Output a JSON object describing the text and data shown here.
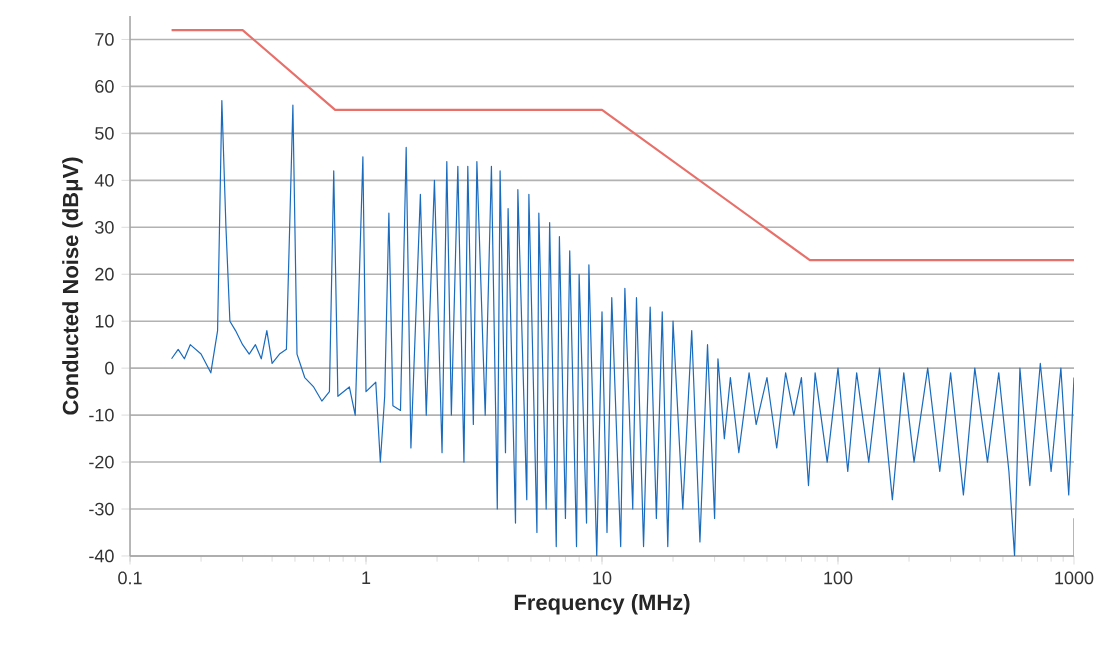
{
  "chart_data": {
    "type": "line",
    "xlabel": "Frequency (MHz)",
    "ylabel": "Conducted Noise (dBμV)",
    "log": "x",
    "grid": "y",
    "xlim": [
      0.1,
      1000
    ],
    "xticks": [
      0.1,
      1,
      10,
      100,
      1000
    ],
    "ylim": [
      -40,
      75
    ],
    "yticks": [
      -40,
      -30,
      -20,
      -10,
      0,
      10,
      20,
      30,
      40,
      50,
      60,
      70
    ],
    "series": [
      {
        "color": "#1a6bbd",
        "x": [
          0.15,
          0.16,
          0.17,
          0.18,
          0.2,
          0.22,
          0.235,
          0.245,
          0.255,
          0.265,
          0.28,
          0.3,
          0.32,
          0.34,
          0.36,
          0.38,
          0.4,
          0.43,
          0.46,
          0.49,
          0.51,
          0.55,
          0.6,
          0.65,
          0.7,
          0.73,
          0.76,
          0.85,
          0.9,
          0.97,
          1.0,
          1.1,
          1.15,
          1.2,
          1.25,
          1.3,
          1.4,
          1.48,
          1.55,
          1.7,
          1.8,
          1.95,
          2.1,
          2.2,
          2.3,
          2.45,
          2.6,
          2.7,
          2.85,
          2.95,
          3.2,
          3.4,
          3.6,
          3.7,
          3.9,
          4.0,
          4.3,
          4.4,
          4.8,
          4.9,
          5.3,
          5.4,
          5.8,
          6.0,
          6.4,
          6.6,
          7.0,
          7.3,
          7.8,
          8.0,
          8.6,
          8.8,
          9.5,
          10,
          10.5,
          11,
          12,
          12.5,
          13.5,
          14,
          15,
          16,
          17,
          18,
          19,
          20,
          22,
          24,
          26,
          28,
          30,
          31,
          33,
          35,
          38,
          42,
          45,
          50,
          55,
          60,
          65,
          70,
          75,
          80,
          90,
          100,
          110,
          120,
          135,
          150,
          170,
          190,
          210,
          240,
          270,
          300,
          340,
          380,
          430,
          480,
          530,
          560,
          590,
          650,
          720,
          800,
          880,
          950,
          1000
        ],
        "values": [
          2,
          4,
          2,
          5,
          3,
          -1,
          8,
          57,
          30,
          10,
          8,
          5,
          3,
          5,
          2,
          8,
          1,
          3,
          4,
          56,
          3,
          -2,
          -4,
          -7,
          -5,
          42,
          -6,
          -4,
          -10,
          45,
          -5,
          -3,
          -20,
          -6,
          33,
          -8,
          -9,
          47,
          -17,
          37,
          -10,
          40,
          -18,
          44,
          -10,
          43,
          -20,
          43,
          -12,
          44,
          -10,
          43,
          -30,
          42,
          -18,
          34,
          -33,
          38,
          -28,
          37,
          -35,
          33,
          -30,
          31,
          -38,
          28,
          -32,
          25,
          -38,
          20,
          -33,
          22,
          -40,
          12,
          -35,
          15,
          -38,
          17,
          -30,
          15,
          -38,
          13,
          -32,
          12,
          -38,
          10,
          -30,
          8,
          -37,
          5,
          -32,
          2,
          -15,
          -2,
          -18,
          -1,
          -12,
          -2,
          -17,
          -1,
          -10,
          -2,
          -25,
          -1,
          -20,
          0,
          -22,
          -1,
          -20,
          0,
          -28,
          -1,
          -20,
          0,
          -22,
          -1,
          -27,
          0,
          -20,
          -1,
          -22,
          -40,
          0,
          -25,
          1,
          -22,
          0,
          -27,
          -2
        ]
      },
      {
        "color": "#e8706a",
        "x": [
          0.15,
          0.3,
          0.74,
          10,
          76,
          1000
        ],
        "values": [
          72,
          72,
          55,
          55,
          23,
          23
        ]
      }
    ]
  }
}
